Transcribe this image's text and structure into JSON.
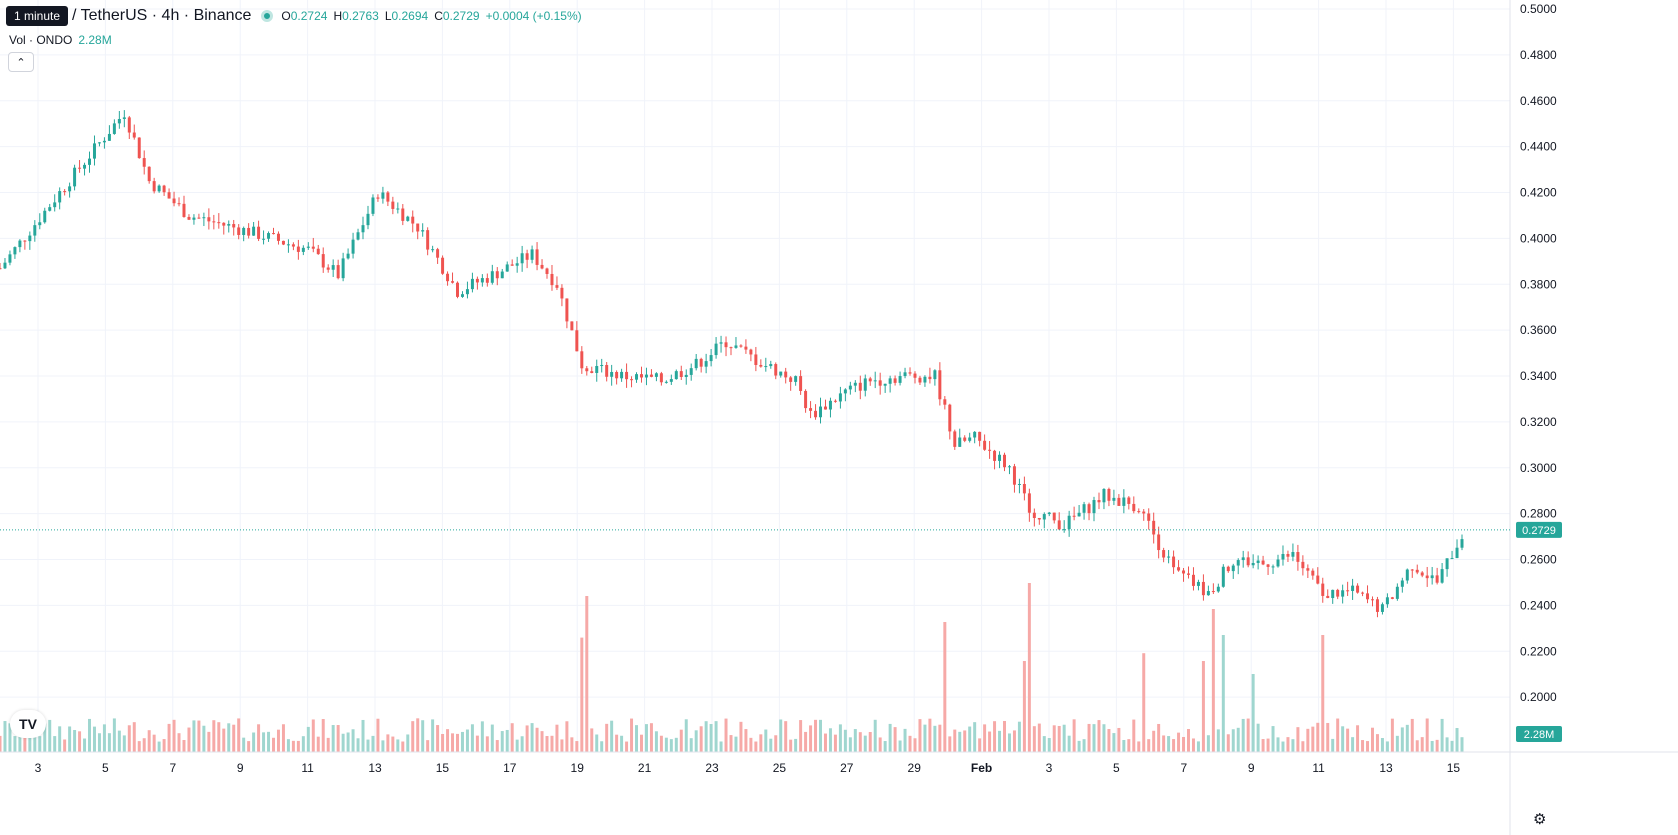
{
  "legend": {
    "timeframe_pill": "1 minute",
    "symbol": "/ TetherUS · 4h · Binance",
    "open_label": "O",
    "open": "0.2724",
    "high_label": "H",
    "high": "0.2763",
    "low_label": "L",
    "low": "0.2694",
    "close_label": "C",
    "close": "0.2729",
    "change": "+0.0004 (+0.15%)"
  },
  "volume_legend": {
    "label": "Vol · ONDO",
    "value": "2.28M"
  },
  "collapse_icon": "chevron-up-icon",
  "logo_icon": "tradingview-logo-icon",
  "settings_icon": "gear-icon",
  "logo_text": "TV",
  "colors": {
    "up": "#26a69a",
    "down": "#ef5350",
    "up_volume": "#9fd6cf",
    "down_volume": "#f6a9a7",
    "grid": "#f0f3fa"
  },
  "chart_data": {
    "type": "candlestick",
    "symbol": "ONDO/USDT",
    "interval": "4h",
    "exchange": "Binance",
    "ylim": [
      0.18,
      0.5
    ],
    "y_ticks": [
      "0.2000",
      "0.2200",
      "0.2400",
      "0.2600",
      "0.2800",
      "0.3000",
      "0.3200",
      "0.3400",
      "0.3600",
      "0.3800",
      "0.4000",
      "0.4200",
      "0.4400",
      "0.4600",
      "0.4800",
      "0.5000"
    ],
    "x_ticks": [
      "3",
      "5",
      "7",
      "9",
      "11",
      "13",
      "15",
      "17",
      "19",
      "21",
      "23",
      "25",
      "27",
      "29",
      "Feb",
      "3",
      "5",
      "7",
      "9",
      "11",
      "13",
      "15"
    ],
    "last_price": "0.2729",
    "last_volume": "2.28M",
    "grid": true,
    "series": [
      {
        "name": "Price",
        "kind": "ohlc",
        "points_per_day": 6
      },
      {
        "name": "Vol · ONDO",
        "kind": "volume"
      }
    ],
    "ohlc_keypoints": [
      [
        0,
        0.387
      ],
      [
        12,
        0.42
      ],
      [
        25,
        0.455
      ],
      [
        30,
        0.425
      ],
      [
        38,
        0.41
      ],
      [
        50,
        0.403
      ],
      [
        62,
        0.395
      ],
      [
        68,
        0.384
      ],
      [
        76,
        0.42
      ],
      [
        84,
        0.405
      ],
      [
        92,
        0.377
      ],
      [
        100,
        0.385
      ],
      [
        107,
        0.393
      ],
      [
        112,
        0.38
      ],
      [
        117,
        0.345
      ],
      [
        125,
        0.34
      ],
      [
        133,
        0.338
      ],
      [
        140,
        0.345
      ],
      [
        146,
        0.355
      ],
      [
        152,
        0.347
      ],
      [
        160,
        0.338
      ],
      [
        163,
        0.323
      ],
      [
        170,
        0.333
      ],
      [
        175,
        0.338
      ],
      [
        182,
        0.34
      ],
      [
        188,
        0.34
      ],
      [
        192,
        0.31
      ],
      [
        196,
        0.313
      ],
      [
        203,
        0.3
      ],
      [
        207,
        0.282
      ],
      [
        214,
        0.275
      ],
      [
        222,
        0.288
      ],
      [
        229,
        0.283
      ],
      [
        236,
        0.255
      ],
      [
        243,
        0.245
      ],
      [
        248,
        0.26
      ],
      [
        254,
        0.258
      ],
      [
        260,
        0.262
      ],
      [
        266,
        0.245
      ],
      [
        272,
        0.246
      ],
      [
        278,
        0.238
      ],
      [
        284,
        0.258
      ],
      [
        289,
        0.25
      ],
      [
        294,
        0.271
      ]
    ],
    "volume_spikes": [
      [
        117,
        0.44
      ],
      [
        118,
        0.6
      ],
      [
        190,
        0.5
      ],
      [
        206,
        0.35
      ],
      [
        207,
        0.65
      ],
      [
        230,
        0.38
      ],
      [
        242,
        0.35
      ],
      [
        244,
        0.55
      ],
      [
        246,
        0.45
      ],
      [
        252,
        0.3
      ],
      [
        266,
        0.45
      ]
    ]
  }
}
